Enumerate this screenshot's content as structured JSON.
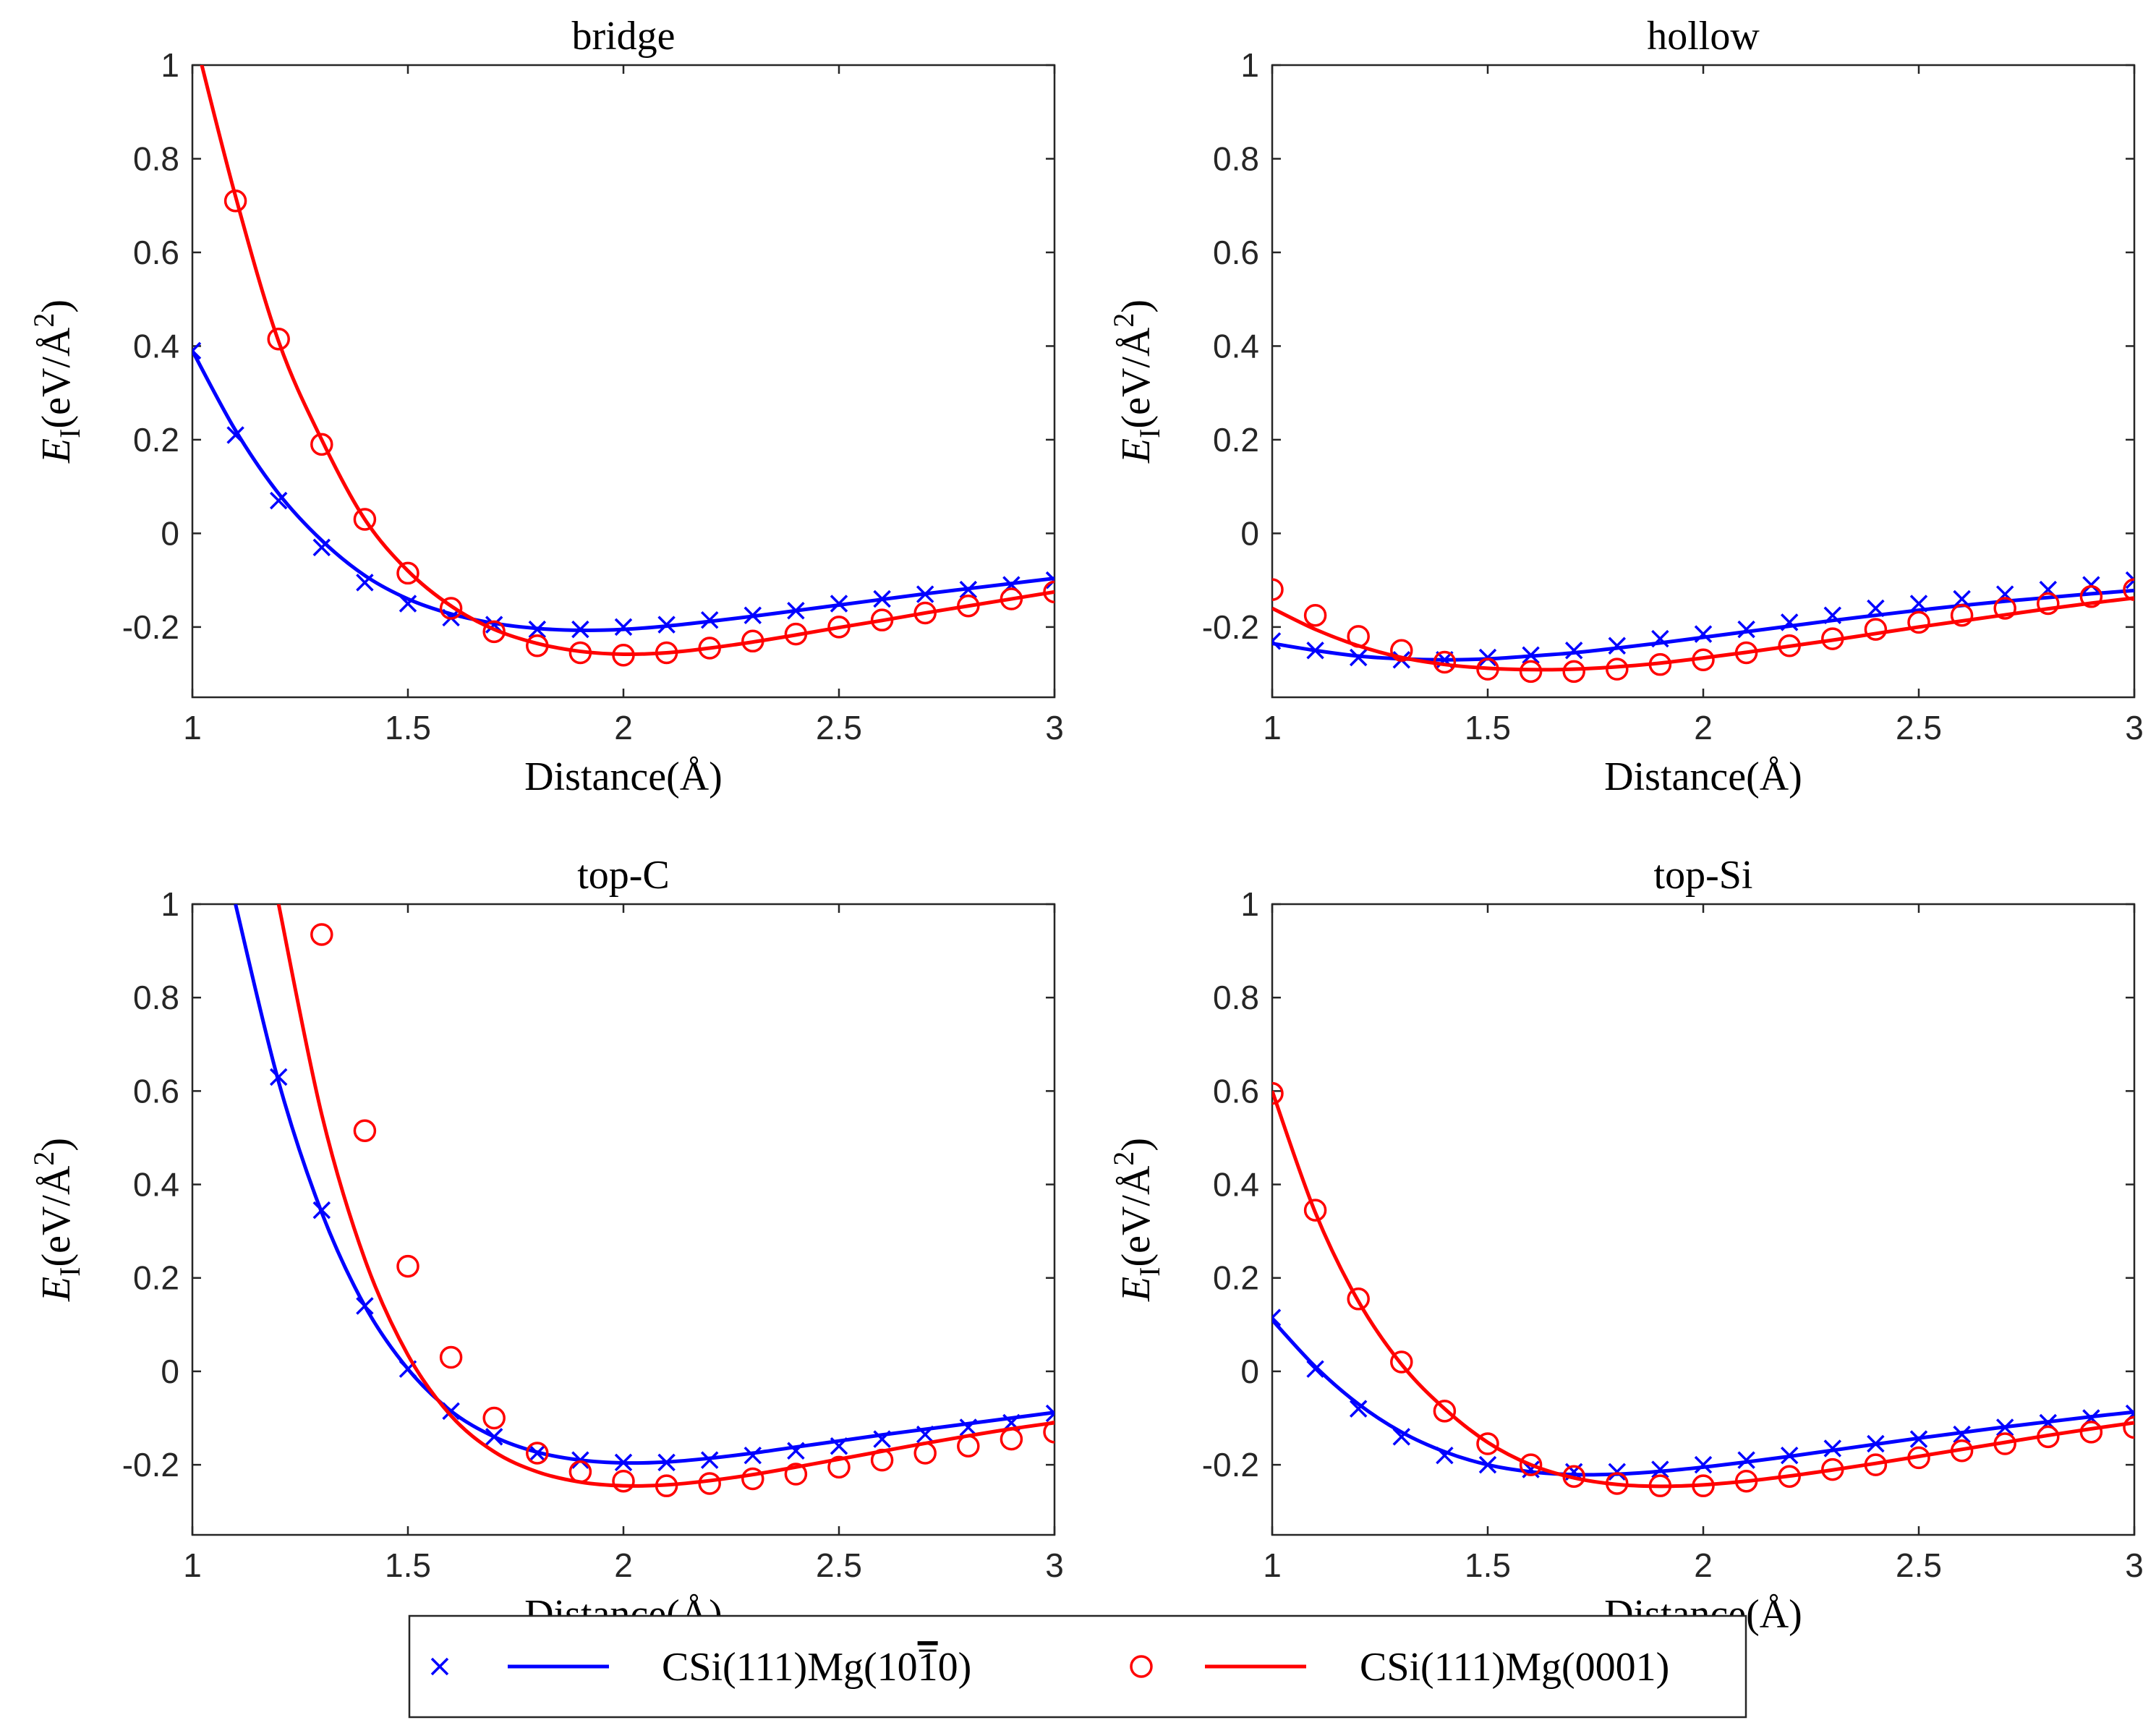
{
  "chart_data": {
    "type": "line",
    "panels": [
      {
        "title": "bridge",
        "xlabel": "Distance(Å)",
        "ylabel": "E_I(eV/Å^2)",
        "xlim": [
          1,
          3
        ],
        "ylim": [
          -0.35,
          1
        ],
        "xticks": [
          1,
          1.5,
          2,
          2.5,
          3
        ],
        "yticks": [
          -0.2,
          0,
          0.2,
          0.4,
          0.6,
          0.8,
          1
        ],
        "series": [
          {
            "marker": "x",
            "color": "#0000ff",
            "x": [
              1.0,
              1.1,
              1.2,
              1.3,
              1.4,
              1.5,
              1.6,
              1.7,
              1.8,
              1.9,
              2.0,
              2.1,
              2.2,
              2.3,
              2.4,
              2.5,
              2.6,
              2.7,
              2.8,
              2.9,
              3.0
            ],
            "y": [
              0.39,
              0.21,
              0.07,
              -0.03,
              -0.105,
              -0.15,
              -0.18,
              -0.195,
              -0.205,
              -0.205,
              -0.2,
              -0.195,
              -0.185,
              -0.175,
              -0.165,
              -0.15,
              -0.14,
              -0.13,
              -0.12,
              -0.11,
              -0.1
            ],
            "fit": [
              0.39,
              0.22,
              0.085,
              -0.015,
              -0.09,
              -0.14,
              -0.172,
              -0.192,
              -0.203,
              -0.207,
              -0.205,
              -0.198,
              -0.188,
              -0.177,
              -0.165,
              -0.153,
              -0.141,
              -0.129,
              -0.118,
              -0.107,
              -0.096
            ]
          },
          {
            "marker": "o",
            "color": "#ff0000",
            "x": [
              1.1,
              1.2,
              1.3,
              1.4,
              1.5,
              1.6,
              1.7,
              1.8,
              1.9,
              2.0,
              2.1,
              2.2,
              2.3,
              2.4,
              2.5,
              2.6,
              2.7,
              2.8,
              2.9,
              3.0
            ],
            "y": [
              0.71,
              0.415,
              0.19,
              0.03,
              -0.085,
              -0.16,
              -0.21,
              -0.24,
              -0.255,
              -0.26,
              -0.255,
              -0.245,
              -0.23,
              -0.215,
              -0.2,
              -0.185,
              -0.17,
              -0.155,
              -0.14,
              -0.125
            ],
            "fit": [
              1.08,
              0.72,
              0.41,
              0.2,
              0.03,
              -0.08,
              -0.155,
              -0.205,
              -0.235,
              -0.252,
              -0.258,
              -0.255,
              -0.245,
              -0.232,
              -0.217,
              -0.201,
              -0.186,
              -0.17,
              -0.155,
              -0.14,
              -0.125
            ]
          }
        ]
      },
      {
        "title": "hollow",
        "xlabel": "Distance(Å)",
        "ylabel": "E_I(eV/Å^2)",
        "xlim": [
          1,
          3
        ],
        "ylim": [
          -0.35,
          1
        ],
        "xticks": [
          1,
          1.5,
          2,
          2.5,
          3
        ],
        "yticks": [
          -0.2,
          0,
          0.2,
          0.4,
          0.6,
          0.8,
          1
        ],
        "series": [
          {
            "marker": "x",
            "color": "#0000ff",
            "x": [
              1.0,
              1.1,
              1.2,
              1.3,
              1.4,
              1.5,
              1.6,
              1.7,
              1.8,
              1.9,
              2.0,
              2.1,
              2.2,
              2.3,
              2.4,
              2.5,
              2.6,
              2.7,
              2.8,
              2.9,
              3.0
            ],
            "y": [
              -0.23,
              -0.25,
              -0.265,
              -0.27,
              -0.27,
              -0.265,
              -0.26,
              -0.25,
              -0.24,
              -0.225,
              -0.215,
              -0.205,
              -0.19,
              -0.175,
              -0.16,
              -0.15,
              -0.14,
              -0.13,
              -0.12,
              -0.11,
              -0.1
            ],
            "fit": [
              -0.235,
              -0.25,
              -0.262,
              -0.268,
              -0.27,
              -0.268,
              -0.262,
              -0.255,
              -0.245,
              -0.234,
              -0.222,
              -0.21,
              -0.198,
              -0.186,
              -0.175,
              -0.164,
              -0.154,
              -0.145,
              -0.137,
              -0.129,
              -0.122
            ]
          },
          {
            "marker": "o",
            "color": "#ff0000",
            "x": [
              1.0,
              1.1,
              1.2,
              1.3,
              1.4,
              1.5,
              1.6,
              1.7,
              1.8,
              1.9,
              2.0,
              2.1,
              2.2,
              2.3,
              2.4,
              2.5,
              2.6,
              2.7,
              2.8,
              2.9,
              3.0
            ],
            "y": [
              -0.12,
              -0.175,
              -0.22,
              -0.25,
              -0.275,
              -0.29,
              -0.295,
              -0.295,
              -0.29,
              -0.28,
              -0.27,
              -0.255,
              -0.24,
              -0.225,
              -0.205,
              -0.19,
              -0.175,
              -0.16,
              -0.15,
              -0.135,
              -0.12
            ],
            "fit": [
              -0.16,
              -0.205,
              -0.24,
              -0.265,
              -0.28,
              -0.288,
              -0.291,
              -0.29,
              -0.285,
              -0.277,
              -0.266,
              -0.254,
              -0.241,
              -0.228,
              -0.214,
              -0.2,
              -0.187,
              -0.174,
              -0.161,
              -0.149,
              -0.138
            ]
          }
        ]
      },
      {
        "title": "top-C",
        "xlabel": "Distance(Å)",
        "ylabel": "E_I(eV/Å^2)",
        "xlim": [
          1,
          3
        ],
        "ylim": [
          -0.35,
          1
        ],
        "xticks": [
          1,
          1.5,
          2,
          2.5,
          3
        ],
        "yticks": [
          -0.2,
          0,
          0.2,
          0.4,
          0.6,
          0.8,
          1
        ],
        "series": [
          {
            "marker": "x",
            "color": "#0000ff",
            "x": [
              1.2,
              1.3,
              1.4,
              1.5,
              1.6,
              1.7,
              1.8,
              1.9,
              2.0,
              2.1,
              2.2,
              2.3,
              2.4,
              2.5,
              2.6,
              2.7,
              2.8,
              2.9,
              3.0
            ],
            "y": [
              0.63,
              0.345,
              0.14,
              0.005,
              -0.085,
              -0.14,
              -0.175,
              -0.19,
              -0.195,
              -0.195,
              -0.19,
              -0.18,
              -0.17,
              -0.16,
              -0.145,
              -0.135,
              -0.12,
              -0.11,
              -0.09
            ],
            "fit": [
              1.0,
              0.62,
              0.34,
              0.14,
              0.005,
              -0.085,
              -0.14,
              -0.173,
              -0.19,
              -0.196,
              -0.194,
              -0.186,
              -0.175,
              -0.162,
              -0.149,
              -0.136,
              -0.124,
              -0.112,
              -0.1,
              -0.088
            ]
          },
          {
            "marker": "o",
            "color": "#ff0000",
            "x": [
              1.3,
              1.4,
              1.5,
              1.6,
              1.7,
              1.8,
              1.9,
              2.0,
              2.1,
              2.2,
              2.3,
              2.4,
              2.5,
              2.6,
              2.7,
              2.8,
              2.9,
              3.0
            ],
            "y": [
              0.935,
              0.515,
              0.225,
              0.03,
              -0.1,
              -0.175,
              -0.215,
              -0.235,
              -0.245,
              -0.24,
              -0.23,
              -0.22,
              -0.205,
              -0.19,
              -0.175,
              -0.16,
              -0.145,
              -0.13
            ],
            "fit": [
              1.0,
              0.55,
              0.24,
              0.035,
              -0.095,
              -0.172,
              -0.215,
              -0.237,
              -0.245,
              -0.243,
              -0.234,
              -0.221,
              -0.205,
              -0.188,
              -0.171,
              -0.154,
              -0.138,
              -0.123,
              -0.11
            ]
          }
        ]
      },
      {
        "title": "top-Si",
        "xlabel": "Distance(Å)",
        "ylabel": "E_I(eV/Å^2)",
        "xlim": [
          1,
          3
        ],
        "ylim": [
          -0.35,
          1
        ],
        "xticks": [
          1,
          1.5,
          2,
          2.5,
          3
        ],
        "yticks": [
          -0.2,
          0,
          0.2,
          0.4,
          0.6,
          0.8,
          1
        ],
        "series": [
          {
            "marker": "x",
            "color": "#0000ff",
            "x": [
              1.0,
              1.1,
              1.2,
              1.3,
              1.4,
              1.5,
              1.6,
              1.7,
              1.8,
              1.9,
              2.0,
              2.1,
              2.2,
              2.3,
              2.4,
              2.5,
              2.6,
              2.7,
              2.8,
              2.9,
              3.0
            ],
            "y": [
              0.115,
              0.005,
              -0.08,
              -0.14,
              -0.18,
              -0.2,
              -0.21,
              -0.215,
              -0.215,
              -0.21,
              -0.2,
              -0.19,
              -0.18,
              -0.165,
              -0.155,
              -0.145,
              -0.135,
              -0.12,
              -0.11,
              -0.1,
              -0.09
            ],
            "fit": [
              0.11,
              0.01,
              -0.07,
              -0.13,
              -0.172,
              -0.2,
              -0.215,
              -0.221,
              -0.22,
              -0.214,
              -0.205,
              -0.194,
              -0.182,
              -0.169,
              -0.156,
              -0.143,
              -0.131,
              -0.119,
              -0.108,
              -0.097,
              -0.087
            ]
          },
          {
            "marker": "o",
            "color": "#ff0000",
            "x": [
              1.0,
              1.1,
              1.2,
              1.3,
              1.4,
              1.5,
              1.6,
              1.7,
              1.8,
              1.9,
              2.0,
              2.1,
              2.2,
              2.3,
              2.4,
              2.5,
              2.6,
              2.7,
              2.8,
              2.9,
              3.0
            ],
            "y": [
              0.595,
              0.345,
              0.155,
              0.02,
              -0.085,
              -0.155,
              -0.2,
              -0.225,
              -0.24,
              -0.245,
              -0.245,
              -0.235,
              -0.225,
              -0.21,
              -0.2,
              -0.185,
              -0.17,
              -0.155,
              -0.14,
              -0.13,
              -0.12
            ],
            "fit": [
              0.6,
              0.34,
              0.15,
              0.015,
              -0.08,
              -0.152,
              -0.2,
              -0.228,
              -0.242,
              -0.246,
              -0.243,
              -0.235,
              -0.224,
              -0.211,
              -0.197,
              -0.182,
              -0.167,
              -0.152,
              -0.137,
              -0.123,
              -0.11
            ]
          }
        ]
      }
    ],
    "legend": {
      "placement": "bottom-center",
      "entries": [
        {
          "label": "CSi(111)Mg(10̅ 1̅ 0)",
          "text_main": "CSi(111)Mg(10",
          "text_bar": "1",
          "text_end": "0)",
          "marker": "x",
          "color": "#0000ff"
        },
        {
          "label": "CSi(111)Mg(0001)",
          "text_main": "CSi(111)Mg(0001)",
          "marker": "o",
          "color": "#ff0000"
        }
      ]
    }
  }
}
